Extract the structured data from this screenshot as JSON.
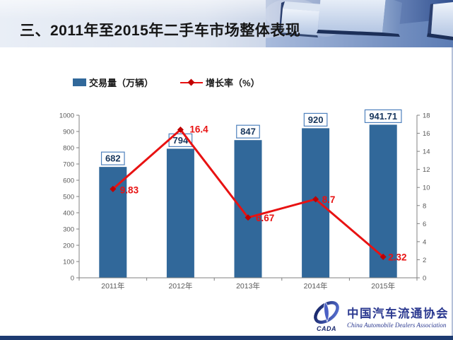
{
  "header": {
    "title": "三、2011年至2015年二手车市场整体表现"
  },
  "chart_data": {
    "type": "combo_bar_line",
    "categories": [
      "2011年",
      "2012年",
      "2013年",
      "2014年",
      "2015年"
    ],
    "series": [
      {
        "name": "交易量（万辆）",
        "type": "bar",
        "axis": "left",
        "color": "#31689a",
        "values": [
          682,
          794,
          847,
          920,
          941.71
        ],
        "data_labels": [
          "682",
          "794",
          "847",
          "920",
          "941.71"
        ]
      },
      {
        "name": "增长率（%）",
        "type": "line",
        "axis": "right",
        "color": "#e81212",
        "marker": "diamond",
        "marker_color": "#c00000",
        "values": [
          9.83,
          16.4,
          6.67,
          8.7,
          2.32
        ],
        "data_labels": [
          "9.83",
          "16.4",
          "6.67",
          "8.7",
          "2.32"
        ]
      }
    ],
    "left_axis": {
      "min": 0,
      "max": 1000,
      "step": 100,
      "tick_labels": [
        "0",
        "100",
        "200",
        "300",
        "400",
        "500",
        "600",
        "700",
        "800",
        "900",
        "1000"
      ]
    },
    "right_axis": {
      "min": 0,
      "max": 18,
      "step": 2,
      "tick_labels": [
        "0",
        "2",
        "4",
        "6",
        "8",
        "10",
        "12",
        "14",
        "16",
        "18"
      ]
    },
    "legend_position": "top",
    "grid": false,
    "title": ""
  },
  "footer": {
    "logo_acronym": "CADA",
    "org_name_cn": "中国汽车流通协会",
    "org_name_en": "China Automobile Dealers Association"
  },
  "colors": {
    "bar": "#31689a",
    "line_red": "#e81212",
    "marker_red": "#c00000",
    "label_box_border": "#4f81bd",
    "label_text": "#17365d",
    "axis": "#808080",
    "tick_text": "#595959",
    "footer_bar": "#1d3b71",
    "logo_blue": "#2b3990"
  }
}
